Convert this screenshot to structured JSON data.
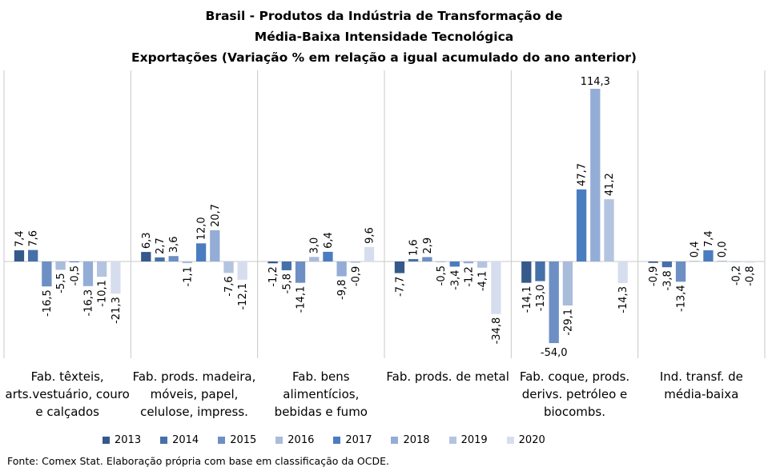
{
  "colors": [
    "#35598a",
    "#4670a8",
    "#6d8fc4",
    "#a9bcda",
    "#4a7cc0",
    "#94add6",
    "#b3c4e1",
    "#d6deee"
  ],
  "chart_data": {
    "type": "bar",
    "title": [
      "Brasil - Produtos da Indústria de Transformação de",
      "Média-Baixa Intensidade Tecnológica",
      "Exportações (Variação % em relação a igual acumulado do ano anterior)"
    ],
    "categories": [
      [
        "Fab. têxteis,",
        "arts.vestuário, couro",
        "e calçados"
      ],
      [
        "Fab. prods. madeira,",
        "móveis, papel,",
        "celulose, impress."
      ],
      [
        "Fab. bens",
        "alimentícios,",
        "bebidas e fumo"
      ],
      [
        "Fab. prods. de metal"
      ],
      [
        "Fab. coque, prods.",
        "derivs. petróleo e",
        "biocombs."
      ],
      [
        "Ind. transf. de",
        "média-baixa"
      ]
    ],
    "series": [
      {
        "name": "2013",
        "values": [
          7.4,
          6.3,
          -1.2,
          -7.7,
          -14.1,
          -0.9
        ]
      },
      {
        "name": "2014",
        "values": [
          7.6,
          2.7,
          -5.8,
          1.6,
          -13.0,
          -3.8
        ]
      },
      {
        "name": "2015",
        "values": [
          -16.5,
          3.6,
          -14.1,
          2.9,
          -54.0,
          -13.4
        ]
      },
      {
        "name": "2016",
        "values": [
          -5.5,
          -1.1,
          3.0,
          -0.5,
          -29.1,
          0.4
        ]
      },
      {
        "name": "2017",
        "values": [
          -0.5,
          12.0,
          6.4,
          -3.4,
          47.7,
          7.4
        ]
      },
      {
        "name": "2018",
        "values": [
          -16.3,
          20.7,
          -9.8,
          -1.2,
          114.3,
          0.0
        ]
      },
      {
        "name": "2019",
        "values": [
          -10.1,
          -7.6,
          -0.9,
          -4.1,
          41.2,
          -0.2
        ]
      },
      {
        "name": "2020",
        "values": [
          -21.3,
          -12.1,
          9.6,
          -34.8,
          -14.3,
          -0.8
        ]
      }
    ],
    "ylim": [
      -65,
      126
    ],
    "grid": false,
    "legend_position": "bottom"
  },
  "source": "Fonte: Comex Stat. Elaboração própria com base em classificação da OCDE."
}
